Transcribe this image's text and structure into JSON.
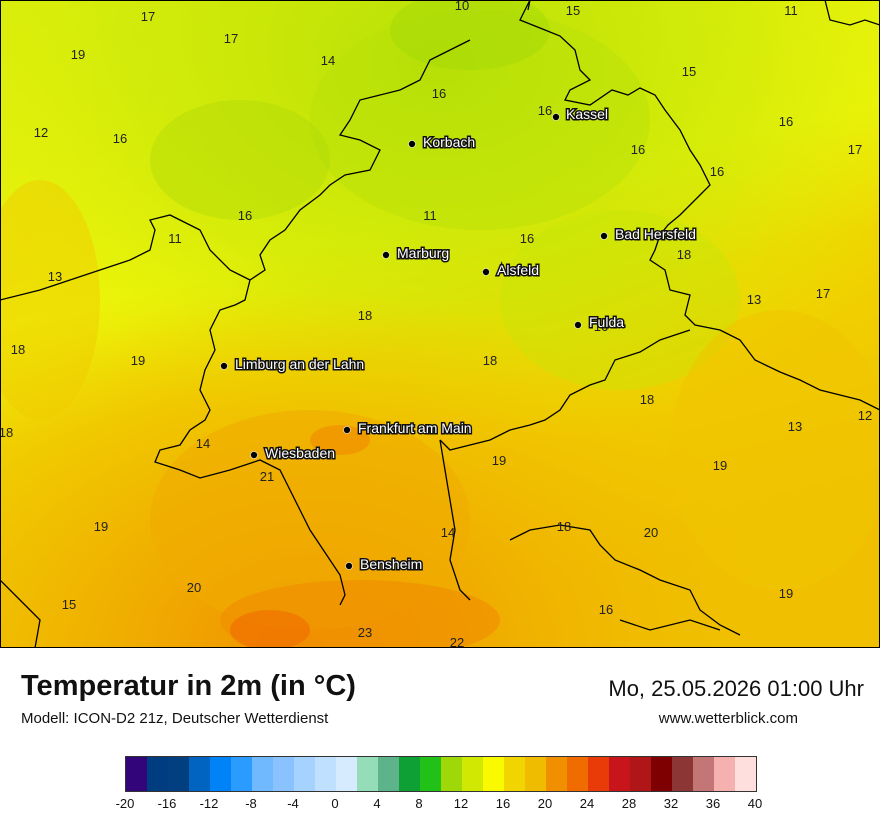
{
  "title": "Temperatur in 2m (in °C)",
  "model": "Modell: ICON-D2 21z, Deutscher Wetterdienst",
  "datetime": "Mo, 25.05.2026 01:00 Uhr",
  "website": "www.wetterblick.com",
  "cities": [
    {
      "name": "Kassel",
      "icon": "city-dot-icon"
    },
    {
      "name": "Korbach",
      "icon": "city-dot-icon"
    },
    {
      "name": "Bad Hersfeld",
      "icon": "city-dot-icon"
    },
    {
      "name": "Marburg",
      "icon": "city-dot-icon"
    },
    {
      "name": "Alsfeld",
      "icon": "city-dot-icon"
    },
    {
      "name": "Fulda",
      "icon": "city-dot-icon"
    },
    {
      "name": "Limburg an der Lahn",
      "icon": "city-dot-icon"
    },
    {
      "name": "Frankfurt am Main",
      "icon": "city-dot-icon"
    },
    {
      "name": "Wiesbaden",
      "icon": "city-dot-icon"
    },
    {
      "name": "Bensheim",
      "icon": "city-dot-icon"
    }
  ],
  "temperature_labels": [
    "10",
    "15",
    "11",
    "17",
    "17",
    "19",
    "14",
    "15",
    "16",
    "16",
    "12",
    "16",
    "16",
    "17",
    "16",
    "11",
    "16",
    "16",
    "11",
    "16",
    "13",
    "13",
    "17",
    "18",
    "18",
    "19",
    "16",
    "18",
    "18",
    "18",
    "18",
    "13",
    "12",
    "14",
    "19",
    "19",
    "21",
    "19",
    "14",
    "18",
    "20",
    "20",
    "15",
    "16",
    "19",
    "23",
    "22"
  ],
  "legend": {
    "colors": [
      "#32067a",
      "#003d80",
      "#013f80",
      "#0064c0",
      "#0083f6",
      "#2a9cff",
      "#70b9ff",
      "#89c2ff",
      "#a6d2ff",
      "#c0e0ff",
      "#d7ebff",
      "#95dcb8",
      "#5db38a",
      "#0fa035",
      "#22c117",
      "#9ed808",
      "#d1e902",
      "#f9fa00",
      "#f1d500",
      "#f0bc00",
      "#f09000",
      "#f06b00",
      "#e83b08",
      "#c8151b",
      "#b01618",
      "#7e0000",
      "#8c3635",
      "#c47575",
      "#f5b1b0",
      "#ffdede"
    ],
    "ticks": [
      "-20",
      "-16",
      "-12",
      "-8",
      "-4",
      "0",
      "4",
      "8",
      "12",
      "16",
      "20",
      "24",
      "28",
      "32",
      "36",
      "40"
    ]
  }
}
